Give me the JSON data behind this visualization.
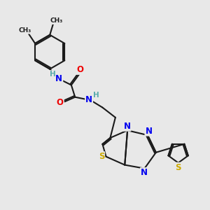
{
  "bg_color": "#e8e8e8",
  "bond_color": "#1a1a1a",
  "bond_width": 1.5,
  "atom_colors": {
    "N": "#0000ee",
    "O": "#ee0000",
    "S": "#ccaa00",
    "H": "#5aabab",
    "C": "#1a1a1a"
  },
  "font_size": 8.5,
  "font_size_h": 7.5
}
